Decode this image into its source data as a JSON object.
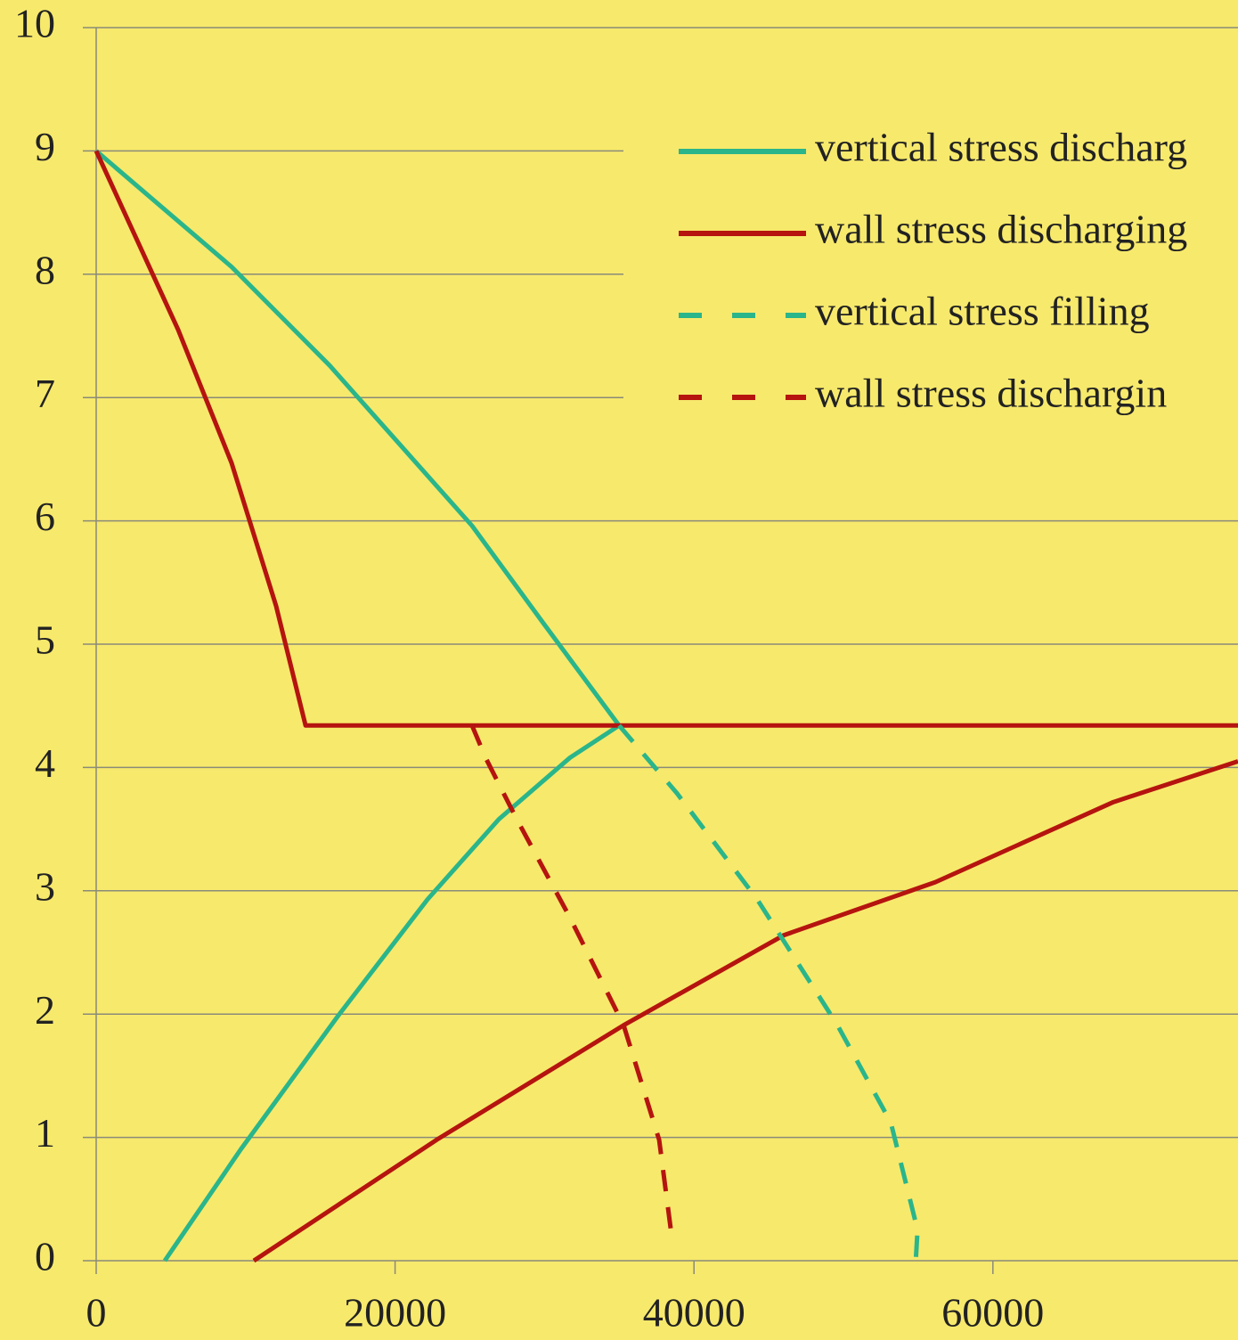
{
  "chart_data": {
    "type": "line",
    "background": "#f7e96c",
    "grid": true,
    "xlim": [
      0,
      76400
    ],
    "xticks": [
      0,
      20000,
      40000,
      60000
    ],
    "ylim": [
      0,
      10
    ],
    "yticks": [
      0,
      1,
      2,
      3,
      4,
      5,
      6,
      7,
      8,
      9,
      10
    ],
    "series": [
      {
        "name": "vertical stress discharg",
        "color": "#2ab58b",
        "linestyle": "solid",
        "x": [
          0,
          9060,
          15620,
          20390,
          25150,
          29920,
          34990,
          31710,
          26940,
          22170,
          16210,
          9660,
          4590
        ],
        "values": [
          9,
          8.06,
          7.26,
          6.61,
          5.96,
          5.17,
          4.34,
          4.08,
          3.58,
          2.93,
          1.99,
          0.9,
          0
        ]
      },
      {
        "name": "wall stress discharging",
        "color": "#b5140f",
        "linestyle": "solid",
        "x": [
          0,
          5480,
          9060,
          12040,
          14010,
          76400,
          null,
          10550,
          22770,
          35290,
          46020,
          56150,
          68070,
          76400
        ],
        "values": [
          9,
          7.55,
          6.47,
          5.31,
          4.34,
          4.34,
          null,
          0,
          0.98,
          1.91,
          2.64,
          3.07,
          3.72,
          4.05
        ]
      },
      {
        "name": "vertical stress filling",
        "color": "#2ab58b",
        "linestyle": "dashed",
        "x": [
          34990,
          38870,
          44230,
          49600,
          53170,
          54960,
          54840
        ],
        "values": [
          4.34,
          3.79,
          2.93,
          1.91,
          1.12,
          0.25,
          0
        ]
      },
      {
        "name": "wall stress dischargin",
        "color": "#b5140f",
        "linestyle": "dashed",
        "x": [
          25150,
          26050,
          28140,
          31710,
          35290,
          37670,
          38570
        ],
        "values": [
          4.34,
          4.08,
          3.58,
          2.78,
          1.91,
          0.98,
          0.14
        ]
      }
    ]
  }
}
